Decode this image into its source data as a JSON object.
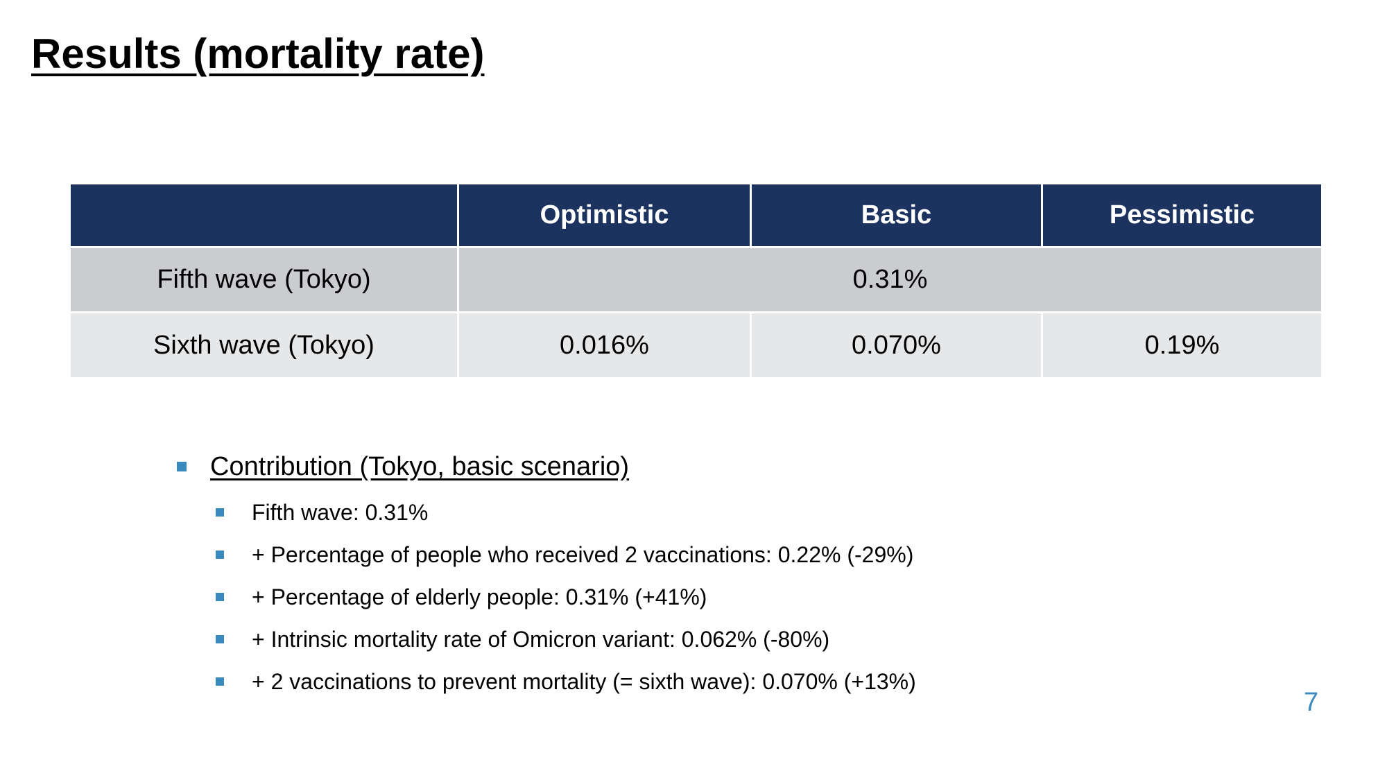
{
  "slide": {
    "title": "Results (mortality rate)",
    "page_number": "7"
  },
  "table": {
    "headers": [
      "",
      "Optimistic",
      "Basic",
      "Pessimistic"
    ],
    "rows": [
      {
        "label": "Fifth wave (Tokyo)",
        "merged_value": "0.31%"
      },
      {
        "label": "Sixth wave (Tokyo)",
        "values": [
          "0.016%",
          "0.070%",
          "0.19%"
        ]
      }
    ]
  },
  "bullets": {
    "heading": "Contribution (Tokyo, basic scenario)",
    "items": [
      "Fifth wave: 0.31%",
      "+ Percentage of people who received 2 vaccinations: 0.22% (-29%)",
      "+ Percentage of elderly people: 0.31% (+41%)",
      "+ Intrinsic mortality rate of Omicron variant: 0.062% (-80%)",
      "+ 2 vaccinations to prevent mortality (= sixth wave): 0.070% (+13%)"
    ]
  },
  "colors": {
    "header_bg": "#1c3360",
    "row1_bg": "#cbccd0",
    "row2_bg": "#e6e7e9",
    "accent": "#3a8abf"
  }
}
